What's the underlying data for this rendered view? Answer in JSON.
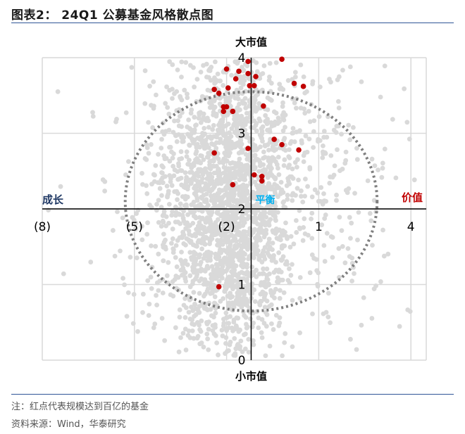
{
  "header": {
    "title": "图表2： 24Q1 公募基金风格散点图"
  },
  "footer": {
    "note": "注：红点代表规模达到百亿的基金",
    "source": "资料来源：Wind，华泰研究"
  },
  "colors": {
    "background_points": "#d9d9d9",
    "highlight_points": "#c00000",
    "grid": "#d9d9d9",
    "axis": "#000000",
    "circle": "#808080",
    "growth_label": "#1f3864",
    "balance_label": "#00b0f0",
    "value_label": "#c00000",
    "rule": "#2f5597"
  },
  "chart_data": {
    "type": "scatter",
    "quadrant_labels": {
      "top": "大市值",
      "bottom": "小市值",
      "left": "成长",
      "right": "价值",
      "center": "平衡"
    },
    "x_axis": {
      "ticks": [
        -8,
        -5,
        -2,
        1,
        4
      ],
      "tick_labels": [
        "(8)",
        "(5)",
        "(2)",
        "1",
        "4"
      ],
      "range": [
        -8,
        4.5
      ]
    },
    "y_axis": {
      "ticks": [
        0,
        1,
        2,
        3,
        4
      ],
      "tick_labels": [
        "0",
        "1",
        "2",
        "3",
        "4"
      ],
      "range": [
        0,
        4
      ]
    },
    "axis_crossing": {
      "x": -1.2,
      "y": 2
    },
    "grid": true,
    "reference_circle": {
      "center_x": -1.2,
      "center_y": 2.1,
      "radius_x": 4.1,
      "radius_y": 1.45,
      "style": "dotted"
    },
    "series": [
      {
        "role": "all_funds",
        "color": "#d9d9d9",
        "n_points_approx": 2600
      },
      {
        "role": "large_funds",
        "color": "#c00000",
        "points": [
          {
            "x": -1.3,
            "y": 3.95
          },
          {
            "x": -0.2,
            "y": 3.98
          },
          {
            "x": -2.0,
            "y": 3.85
          },
          {
            "x": -1.3,
            "y": 3.79
          },
          {
            "x": -1.6,
            "y": 3.82
          },
          {
            "x": -1.05,
            "y": 3.75
          },
          {
            "x": -1.1,
            "y": 3.63
          },
          {
            "x": -1.25,
            "y": 3.63
          },
          {
            "x": -1.7,
            "y": 3.72
          },
          {
            "x": 0.2,
            "y": 3.66
          },
          {
            "x": 0.5,
            "y": 3.62
          },
          {
            "x": -2.4,
            "y": 3.58
          },
          {
            "x": -2.25,
            "y": 3.53
          },
          {
            "x": -1.95,
            "y": 3.6
          },
          {
            "x": -2.1,
            "y": 3.35
          },
          {
            "x": -2.0,
            "y": 3.35
          },
          {
            "x": -2.1,
            "y": 3.29
          },
          {
            "x": -1.8,
            "y": 3.29
          },
          {
            "x": -0.8,
            "y": 3.36
          },
          {
            "x": -2.4,
            "y": 2.74
          },
          {
            "x": -0.45,
            "y": 2.92
          },
          {
            "x": -1.3,
            "y": 2.8
          },
          {
            "x": -0.2,
            "y": 2.85
          },
          {
            "x": 0.35,
            "y": 2.78
          },
          {
            "x": -1.1,
            "y": 2.45
          },
          {
            "x": -0.85,
            "y": 2.43
          },
          {
            "x": -0.85,
            "y": 2.37
          },
          {
            "x": -1.8,
            "y": 2.32
          },
          {
            "x": -2.25,
            "y": 0.97
          }
        ]
      }
    ]
  }
}
